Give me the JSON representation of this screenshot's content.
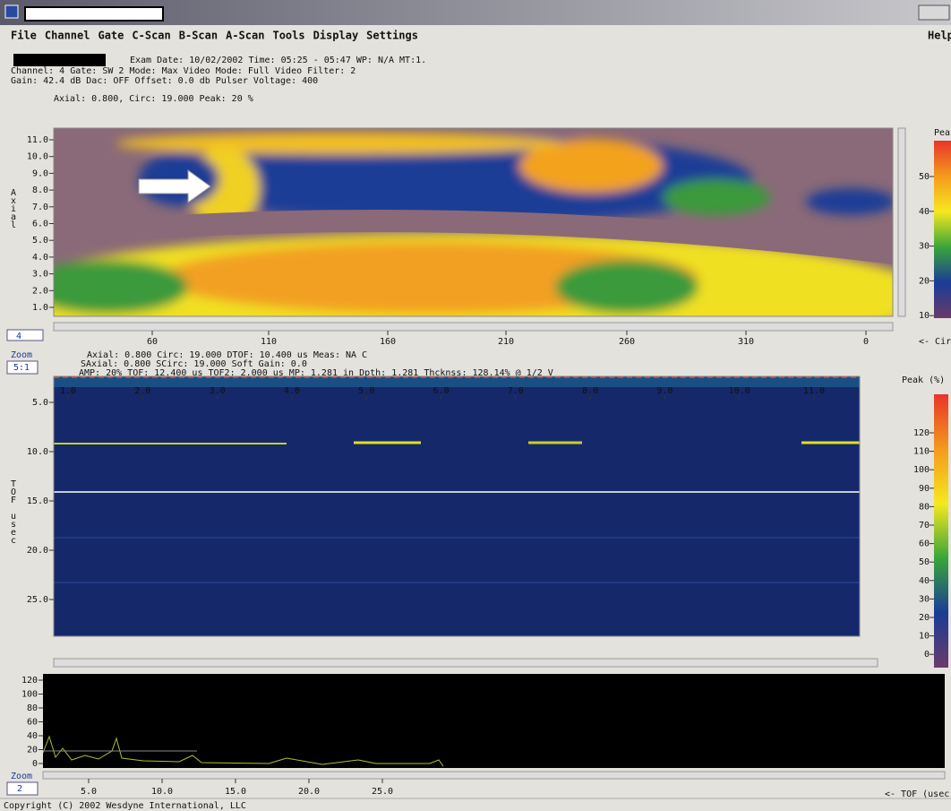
{
  "menu": [
    "File",
    "Channel",
    "Gate",
    "C-Scan",
    "B-Scan",
    "A-Scan",
    "Tools",
    "Display",
    "Settings"
  ],
  "help": "Help",
  "info": [
    "Exam Date: 10/02/2002  Time: 05:25 - 05:47  WP: N/A  MT:1.",
    "Channel: 4  Gate: SW 2  Mode: Max  Video Mode: Full  Video Filter: 2",
    "Gain: 42.4 dB  Dac: OFF  Offset: 0.0 db  Pulser Voltage: 400"
  ],
  "cscan": {
    "readout": "Axial:     0.800, Circ:     19.000  Peak:    20 %",
    "y_axis_label": "Axial",
    "yticks": [
      "11.0",
      "10.0",
      "9.0",
      "8.0",
      "7.0",
      "6.0",
      "5.0",
      "4.0",
      "3.0",
      "2.0",
      "1.0"
    ],
    "xticks": [
      "60",
      "110",
      "160",
      "210",
      "260",
      "310",
      "0"
    ],
    "zoom_value": "4",
    "scale_title": "Peak",
    "scale_ticks": [
      "50",
      "40",
      "30",
      "20",
      "10"
    ],
    "x_axis_label": "<- Cir"
  },
  "bscan": {
    "zoom_label": "Zoom",
    "zoom_value": "5:1",
    "readout": [
      "Axial:    0.800   Circ:    19.000   DTOF: 10.400 us  Meas: NA C",
      "SAxial:   0.800  SCirc:   19.000     Soft Gain: 0.0",
      "AMP:  20% TOF: 12.400 us  TOF2:  2.000 us  MP: 1.281 in  Dpth: 1.281  Thcknss: 128.14% @ 1/2 V"
    ],
    "xticks": [
      "1.0",
      "2.0",
      "3.0",
      "4.0",
      "5.0",
      "6.0",
      "7.0",
      "8.0",
      "9.0",
      "10.0",
      "11.0"
    ],
    "yticks": [
      "5.0",
      "10.0",
      "15.0",
      "20.0",
      "25.0"
    ],
    "y_axis_label": "TOF usec",
    "scale_title": "Peak  (%)",
    "scale_ticks": [
      "120",
      "110",
      "100",
      "90",
      "80",
      "70",
      "60",
      "50",
      "40",
      "30",
      "20",
      "10",
      "0"
    ]
  },
  "ascan": {
    "yticks": [
      "120",
      "100",
      "80",
      "60",
      "40",
      "20",
      "0"
    ],
    "zoom_label": "Zoom",
    "zoom_value": "2",
    "xticks": [
      "5.0",
      "10.0",
      "15.0",
      "20.0",
      "25.0"
    ],
    "x_axis_label": "<- TOF (usec)"
  },
  "footer": "Copyright (C) 2002 Wesdyne International, LLC"
}
